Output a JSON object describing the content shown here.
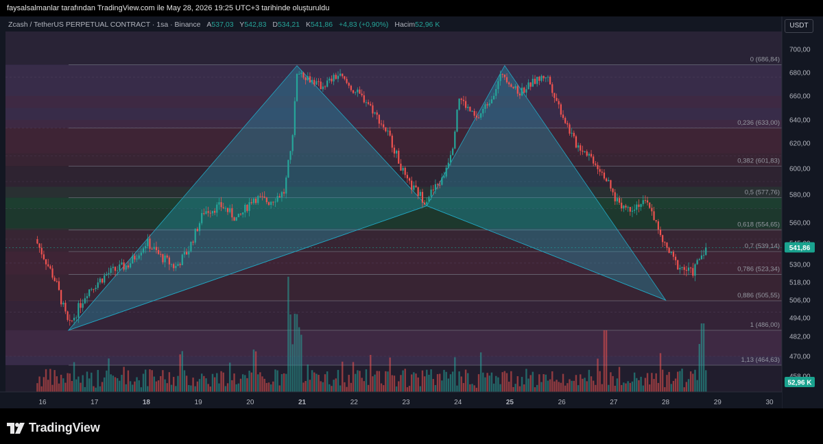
{
  "header": {
    "note": "faysalsalmanlar tarafından TradingView.com ile May 28, 2026 19:25 UTC+3 tarihinde oluşturuldu"
  },
  "legend": {
    "symbol": "Zcash / TetherUS PERPETUAL CONTRACT · 1sa · Binance",
    "open_label": "A",
    "open": "537,03",
    "high_label": "Y",
    "high": "542,83",
    "low_label": "D",
    "low": "534,21",
    "close_label": "K",
    "close": "541,86",
    "change": "+4,83 (+0,90%)",
    "volume_label": "Hacim",
    "volume": "52,96 K"
  },
  "currency_button": "USDT",
  "price_axis": {
    "ticks": [
      "700,00",
      "680,00",
      "660,00",
      "640,00",
      "620,00",
      "600,00",
      "580,00",
      "560,00",
      "545,00",
      "530,00",
      "518,00",
      "506,00",
      "494,00",
      "482,00",
      "470,00",
      "458,00"
    ],
    "last_price_badge": "541,86",
    "volume_badge": "52,96 K"
  },
  "time_axis": {
    "ticks": [
      "16",
      "17",
      "18",
      "19",
      "20",
      "21",
      "22",
      "23",
      "24",
      "25",
      "26",
      "27",
      "28",
      "29",
      "30"
    ],
    "bold_ticks": [
      "18",
      "21",
      "25"
    ]
  },
  "fib_levels": [
    {
      "label": "0 (686,84)",
      "price": 686.84
    },
    {
      "label": "0,236 (633,00)",
      "price": 633.0
    },
    {
      "label": "0,382 (601,83)",
      "price": 601.83
    },
    {
      "label": "0,5 (577,76)",
      "price": 577.76
    },
    {
      "label": "0,618 (554,65)",
      "price": 554.65
    },
    {
      "label": "0,7 (539,14)",
      "price": 539.14
    },
    {
      "label": "0,786 (523,34)",
      "price": 523.34
    },
    {
      "label": "0,886 (505,55)",
      "price": 505.55
    },
    {
      "label": "1 (486,00)",
      "price": 486.0
    },
    {
      "label": "1,13 (464,63)",
      "price": 464.63
    }
  ],
  "pattern_points": [
    {
      "day": 16.5,
      "price": 486
    },
    {
      "day": 20.9,
      "price": 686
    },
    {
      "day": 23.4,
      "price": 572
    },
    {
      "day": 24.9,
      "price": 686
    },
    {
      "day": 28.0,
      "price": 506
    }
  ],
  "price_path": [
    {
      "day": 15.9,
      "price": 548
    },
    {
      "day": 16.3,
      "price": 518
    },
    {
      "day": 16.55,
      "price": 488
    },
    {
      "day": 16.9,
      "price": 512
    },
    {
      "day": 17.3,
      "price": 524
    },
    {
      "day": 17.7,
      "price": 530
    },
    {
      "day": 18.05,
      "price": 546
    },
    {
      "day": 18.3,
      "price": 536
    },
    {
      "day": 18.6,
      "price": 528
    },
    {
      "day": 18.85,
      "price": 540
    },
    {
      "day": 19.15,
      "price": 568
    },
    {
      "day": 19.5,
      "price": 572
    },
    {
      "day": 19.8,
      "price": 562
    },
    {
      "day": 20.1,
      "price": 578
    },
    {
      "day": 20.4,
      "price": 575
    },
    {
      "day": 20.7,
      "price": 582
    },
    {
      "day": 20.85,
      "price": 625
    },
    {
      "day": 20.95,
      "price": 682
    },
    {
      "day": 21.4,
      "price": 668
    },
    {
      "day": 21.75,
      "price": 678
    },
    {
      "day": 22.0,
      "price": 666
    },
    {
      "day": 22.3,
      "price": 655
    },
    {
      "day": 22.7,
      "price": 628
    },
    {
      "day": 23.05,
      "price": 590
    },
    {
      "day": 23.4,
      "price": 576
    },
    {
      "day": 23.75,
      "price": 592
    },
    {
      "day": 23.95,
      "price": 620
    },
    {
      "day": 24.05,
      "price": 660
    },
    {
      "day": 24.4,
      "price": 640
    },
    {
      "day": 24.7,
      "price": 660
    },
    {
      "day": 24.9,
      "price": 680
    },
    {
      "day": 25.2,
      "price": 662
    },
    {
      "day": 25.5,
      "price": 672
    },
    {
      "day": 25.75,
      "price": 678
    },
    {
      "day": 26.0,
      "price": 650
    },
    {
      "day": 26.3,
      "price": 620
    },
    {
      "day": 26.55,
      "price": 612
    },
    {
      "day": 26.85,
      "price": 596
    },
    {
      "day": 27.05,
      "price": 578
    },
    {
      "day": 27.3,
      "price": 570
    },
    {
      "day": 27.55,
      "price": 574
    },
    {
      "day": 27.75,
      "price": 572
    },
    {
      "day": 27.95,
      "price": 548
    },
    {
      "day": 28.25,
      "price": 530
    },
    {
      "day": 28.55,
      "price": 524
    },
    {
      "day": 28.8,
      "price": 542
    }
  ],
  "colors": {
    "background": "#131722",
    "up": "#26a69a",
    "down": "#ef5350",
    "fib_line": "#787b86",
    "pattern": "#22a9c5",
    "accent_green": "#1aa38f"
  },
  "logo": {
    "icon": "tradingview-logo-icon",
    "text": "TradingView"
  }
}
